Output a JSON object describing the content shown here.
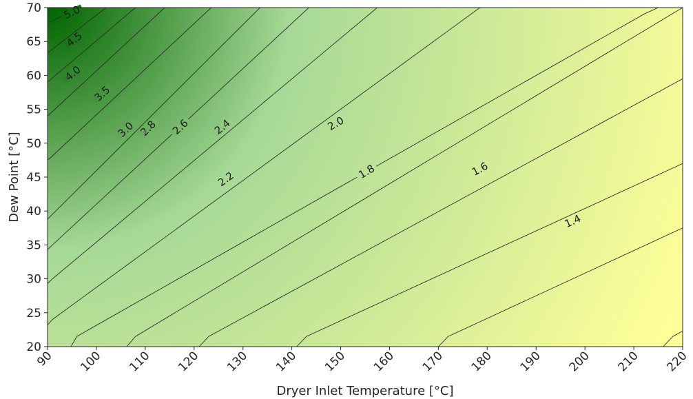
{
  "chart_data": {
    "type": "contour",
    "xlabel": "Dryer Inlet Temperature [°C]",
    "ylabel": "Dew Point [°C]",
    "xlim": [
      90,
      220
    ],
    "ylim": [
      20,
      70
    ],
    "xticks": [
      90,
      100,
      110,
      120,
      130,
      140,
      150,
      160,
      170,
      180,
      190,
      200,
      210,
      220
    ],
    "yticks": [
      20,
      25,
      30,
      35,
      40,
      45,
      50,
      55,
      60,
      65,
      70
    ],
    "colormap": {
      "low": "#ffff99",
      "mid": "#a6d996",
      "high": "#006400"
    },
    "contours": [
      {
        "level": 5.0,
        "label": "5.0",
        "line": [
          [
            90.3,
            67.8
          ],
          [
            96.5,
            70
          ]
        ],
        "label_at": [
          95.0,
          69.3
        ]
      },
      {
        "level": 4.5,
        "label": "4.5",
        "line": [
          [
            90,
            63.3
          ],
          [
            102,
            70
          ]
        ],
        "label_at": [
          95.5,
          65.3
        ]
      },
      {
        "level": 4.0,
        "label": "4.0",
        "line": [
          [
            90,
            59
          ],
          [
            108,
            70
          ]
        ],
        "label_at": [
          95.2,
          60.3
        ]
      },
      {
        "level": 3.5,
        "label": "3.5",
        "line": [
          [
            90,
            54
          ],
          [
            114,
            70
          ]
        ],
        "label_at": [
          101.2,
          57.3
        ]
      },
      {
        "level": 3.0,
        "label": "3.0",
        "line": [
          [
            90,
            47.5
          ],
          [
            90.8,
            48
          ],
          [
            123.5,
            70
          ]
        ],
        "label_at": [
          106.0,
          52.0
        ]
      },
      {
        "level": 2.8,
        "label": "2.8",
        "line": [
          [
            90,
            38.8
          ],
          [
            91,
            39.5
          ],
          [
            133.5,
            70
          ]
        ],
        "label_at": [
          110.6,
          52.2
        ]
      },
      {
        "level": 2.6,
        "label": "2.6",
        "line": [
          [
            90,
            34.3
          ],
          [
            91,
            35
          ],
          [
            143.5,
            70
          ]
        ],
        "label_at": [
          117.2,
          52.4
        ]
      },
      {
        "level": 2.4,
        "label": "2.4",
        "line": [
          [
            90,
            29.3
          ],
          [
            91,
            30
          ],
          [
            157.5,
            70
          ]
        ],
        "label_at": [
          125.8,
          52.4
        ]
      },
      {
        "level": 2.2,
        "label": "2.2",
        "line": [
          [
            90,
            23.2
          ],
          [
            91,
            24
          ],
          [
            178.5,
            70
          ]
        ],
        "label_at": [
          126.5,
          44.7
        ]
      },
      {
        "level": 2.0,
        "label": "2.0",
        "line": [
          [
            94.8,
            20
          ],
          [
            96,
            21.5
          ],
          [
            212,
            69
          ],
          [
            215,
            70
          ]
        ],
        "label_at": [
          149.0,
          52.9
        ]
      },
      {
        "level": 1.8,
        "label": "1.8",
        "line": [
          [
            106.2,
            20
          ],
          [
            108,
            21.5
          ],
          [
            220,
            70
          ]
        ],
        "label_at": [
          155.3,
          45.8
        ]
      },
      {
        "level": 1.6,
        "label": "1.6",
        "line": [
          [
            121,
            20
          ],
          [
            123,
            21.5
          ],
          [
            220,
            59.5
          ]
        ],
        "label_at": [
          178.5,
          46.2
        ]
      },
      {
        "level": 1.4,
        "label": "1.4",
        "line": [
          [
            141,
            20
          ],
          [
            143,
            21.5
          ],
          [
            220,
            47
          ]
        ],
        "label_at": [
          197.5,
          38.5
        ]
      },
      {
        "level": 1.2,
        "label": "",
        "line": [
          [
            170,
            20
          ],
          [
            172,
            21.5
          ],
          [
            220,
            37.5
          ]
        ],
        "label_at": null
      },
      {
        "level": 1.0,
        "label": "",
        "line": [
          [
            216,
            20
          ],
          [
            218,
            21.5
          ],
          [
            220,
            22.3
          ]
        ],
        "label_at": null
      }
    ]
  }
}
